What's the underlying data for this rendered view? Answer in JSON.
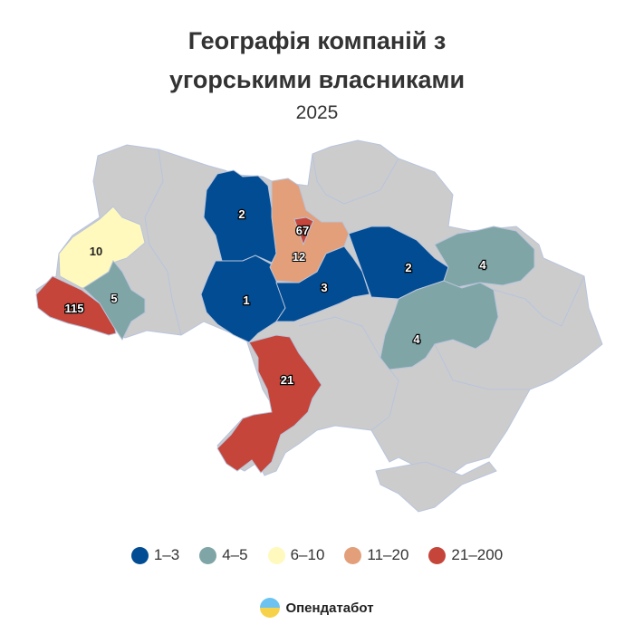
{
  "title_line1": "Географія компаній з",
  "title_line2": "угорськими власниками",
  "year": "2025",
  "colors": {
    "1-3": "#014C92",
    "4-5": "#7FA5A6",
    "6-10": "#FFF9BD",
    "11-20": "#E29F7A",
    "21-200": "#C5453A",
    "no_data": "#CCCCCD"
  },
  "regions": [
    {
      "name": "Закарпатська",
      "value": "115",
      "bin": "21-200"
    },
    {
      "name": "Львівська",
      "value": "10",
      "bin": "6-10"
    },
    {
      "name": "Івано-Франківська",
      "value": "5",
      "bin": "4-5"
    },
    {
      "name": "Житомирська",
      "value": "2",
      "bin": "1-3"
    },
    {
      "name": "Вінницька",
      "value": "1",
      "bin": "1-3"
    },
    {
      "name": "Київська",
      "value": "12",
      "bin": "11-20"
    },
    {
      "name": "Київ",
      "value": "67",
      "bin": "21-200"
    },
    {
      "name": "Черкаська",
      "value": "3",
      "bin": "1-3"
    },
    {
      "name": "Полтавська",
      "value": "2",
      "bin": "1-3"
    },
    {
      "name": "Харківська",
      "value": "4",
      "bin": "4-5"
    },
    {
      "name": "Дніпропетровська",
      "value": "4",
      "bin": "4-5"
    },
    {
      "name": "Одеська",
      "value": "21",
      "bin": "21-200"
    }
  ],
  "legend": [
    {
      "label": "1–3",
      "color": "#014C92"
    },
    {
      "label": "4–5",
      "color": "#7FA5A6"
    },
    {
      "label": "6–10",
      "color": "#FFF9BD"
    },
    {
      "label": "11–20",
      "color": "#E29F7A"
    },
    {
      "label": "21–200",
      "color": "#C5453A"
    }
  ],
  "brand": "Опендатабот"
}
